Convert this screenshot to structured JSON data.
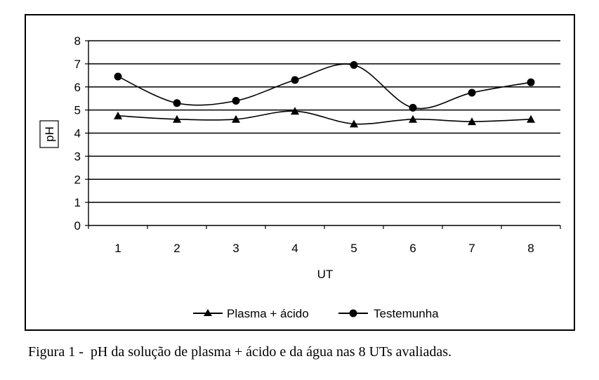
{
  "chart_data": {
    "type": "line",
    "x": [
      "1",
      "2",
      "3",
      "4",
      "5",
      "6",
      "7",
      "8"
    ],
    "series": [
      {
        "name": "Plasma + ácido",
        "marker": "triangle",
        "values": [
          4.75,
          4.6,
          4.6,
          4.95,
          4.4,
          4.6,
          4.5,
          4.6
        ]
      },
      {
        "name": "Testemunha",
        "marker": "circle",
        "values": [
          6.45,
          5.3,
          5.4,
          6.3,
          6.95,
          5.1,
          5.75,
          6.2
        ]
      }
    ],
    "xlabel": "UT",
    "ylabel": "pH",
    "ylim": [
      0,
      8
    ],
    "yticks": [
      "0",
      "1",
      "2",
      "3",
      "4",
      "5",
      "6",
      "7",
      "8"
    ],
    "grid": "horizontal",
    "legend_position": "bottom",
    "smooth": true,
    "colors": {
      "lines": "#000000",
      "grid": "#000000",
      "background": "#ffffff"
    }
  },
  "caption": "Figura 1 -  pH da solução de plasma + ácido e da água nas 8 UTs avaliadas."
}
